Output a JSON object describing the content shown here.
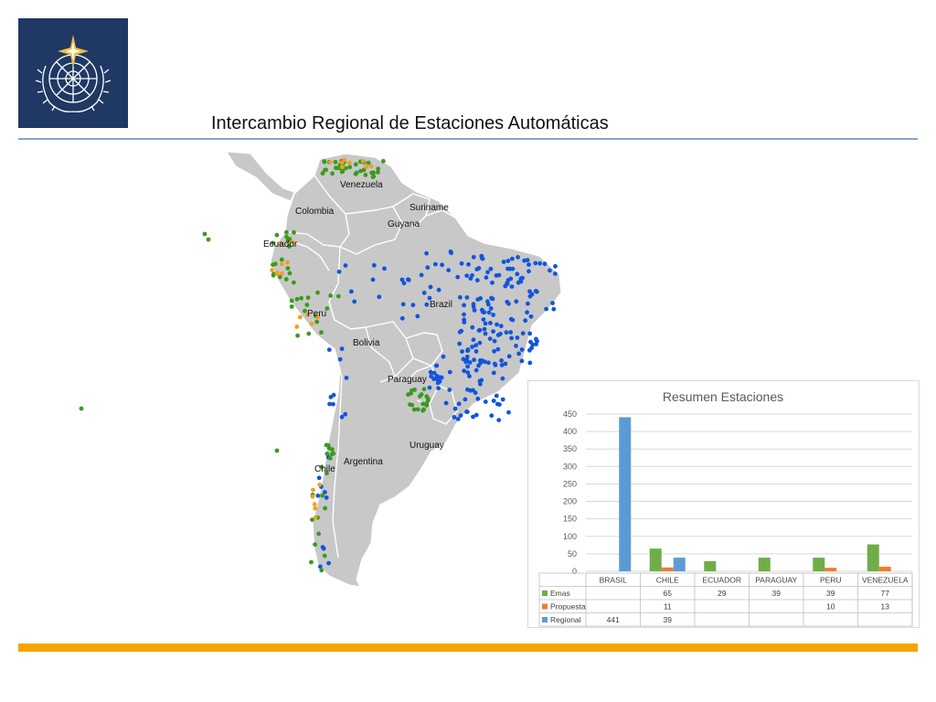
{
  "page": {
    "title": "Intercambio Regional de Estaciones Automáticas"
  },
  "colors": {
    "logo_bg": "#1f3864",
    "rule": "#7ea6cf",
    "bottom_bar": "#f5a400",
    "land": "#c8c8c8",
    "emas": "#70ad47",
    "propuesta": "#ed7d31",
    "regional": "#5b9bd5",
    "map_green": "#3a9a1e",
    "map_orange": "#f0a020",
    "map_blue": "#1155dd"
  },
  "map": {
    "country_labels": [
      "Venezuela",
      "Colombia",
      "Suriname",
      "Guyana",
      "Ecuador",
      "Brazil",
      "Peru",
      "Bolivia",
      "Paraguay",
      "Uruguay",
      "Argentina",
      "Chile"
    ]
  },
  "chart_data": {
    "type": "bar",
    "title": "Resumen Estaciones",
    "categories": [
      "BRASIL",
      "CHILE",
      "ECUADOR",
      "PARAGUAY",
      "PERU",
      "VENEZUELA"
    ],
    "series": [
      {
        "name": "Emas",
        "values": [
          null,
          65,
          29,
          39,
          39,
          77
        ],
        "color": "#70ad47"
      },
      {
        "name": "Propuesta",
        "values": [
          null,
          11,
          null,
          null,
          10,
          13
        ],
        "color": "#ed7d31"
      },
      {
        "name": "Regional",
        "values": [
          441,
          39,
          null,
          null,
          null,
          null
        ],
        "color": "#5b9bd5"
      }
    ],
    "ylim": [
      0,
      450
    ],
    "yticks": [
      0,
      50,
      100,
      150,
      200,
      250,
      300,
      350,
      400,
      450
    ],
    "grid": true,
    "legend": "data-table-below"
  }
}
